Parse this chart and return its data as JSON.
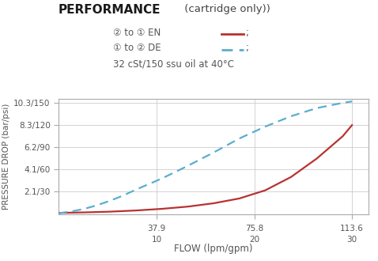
{
  "title_bold": "PERFORMANCE",
  "title_normal": " (cartridge only))",
  "legend_line3": "32 cSt/150 ssu oil at 40°C",
  "xlabel": "FLOW (lpm/gpm)",
  "ylabel": "PRESSURE DROP (bar/psi)",
  "ytick_labels": [
    "2.1/30",
    "4.1/60",
    "6.2/90",
    "8.3/120",
    "10.3/150"
  ],
  "ytick_values": [
    30,
    60,
    90,
    120,
    150
  ],
  "ymin": 0,
  "ymax": 155,
  "xtick_values": [
    37.9,
    75.8,
    113.6
  ],
  "xtick_top": [
    "37.9",
    "75.8",
    "113.6"
  ],
  "xtick_bot": [
    "10",
    "20",
    "30"
  ],
  "xmin": 0,
  "xmax": 120,
  "color_red": "#b83232",
  "color_blue": "#5aaecd",
  "color_grid": "#cccccc",
  "color_spine": "#aaaaaa",
  "color_text": "#555555",
  "background": "#ffffff",
  "en_x": [
    0,
    10,
    20,
    30,
    40,
    50,
    60,
    70,
    80,
    90,
    100,
    110,
    113.6
  ],
  "en_y": [
    1.5,
    2.2,
    3.2,
    4.8,
    7.0,
    10.0,
    14.5,
    21.0,
    32.0,
    50.0,
    75.0,
    105.0,
    120.0
  ],
  "de_x": [
    0,
    5,
    10,
    15,
    20,
    25,
    30,
    40,
    50,
    60,
    70,
    80,
    90,
    100,
    110,
    113.6
  ],
  "de_y": [
    1.0,
    3.5,
    7.0,
    12.0,
    18.0,
    25.0,
    33.0,
    48.0,
    65.0,
    83.0,
    102.0,
    118.0,
    132.0,
    143.0,
    150.0,
    152.0
  ]
}
